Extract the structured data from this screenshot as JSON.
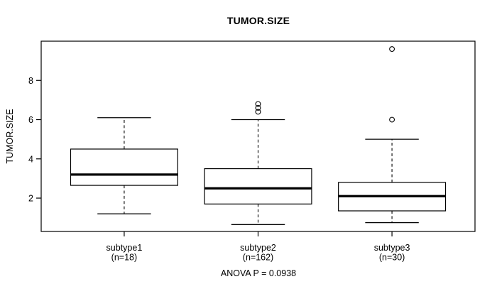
{
  "page": {
    "background": "#ffffff",
    "text_color": "#000000"
  },
  "chart_data": {
    "type": "boxplot",
    "title": "TUMOR.SIZE",
    "ylabel": "TUMOR.SIZE",
    "xlabel": "",
    "footer": "ANOVA P = 0.0938",
    "ylim": [
      0.3,
      10.0
    ],
    "yticks": [
      2,
      4,
      6,
      8
    ],
    "grid": false,
    "legend_position": "none",
    "categories": [
      "subtype1",
      "subtype2",
      "subtype3"
    ],
    "groups": [
      {
        "label": "subtype1",
        "count_label": "(n=18)",
        "n": 18,
        "stats": {
          "whisker_low": 1.2,
          "q1": 2.65,
          "median": 3.2,
          "q3": 4.5,
          "whisker_high": 6.1
        },
        "outliers": []
      },
      {
        "label": "subtype2",
        "count_label": "(n=162)",
        "n": 162,
        "stats": {
          "whisker_low": 0.65,
          "q1": 1.7,
          "median": 2.5,
          "q3": 3.5,
          "whisker_high": 6.0
        },
        "outliers": [
          6.8,
          6.6,
          6.4
        ]
      },
      {
        "label": "subtype3",
        "count_label": "(n=30)",
        "n": 30,
        "stats": {
          "whisker_low": 0.75,
          "q1": 1.35,
          "median": 2.1,
          "q3": 2.8,
          "whisker_high": 5.0
        },
        "outliers": [
          9.6,
          6.0
        ]
      }
    ],
    "styles": {
      "line_color": "#000000",
      "box_fill": "#ffffff",
      "whisker_style": "dashed"
    }
  }
}
